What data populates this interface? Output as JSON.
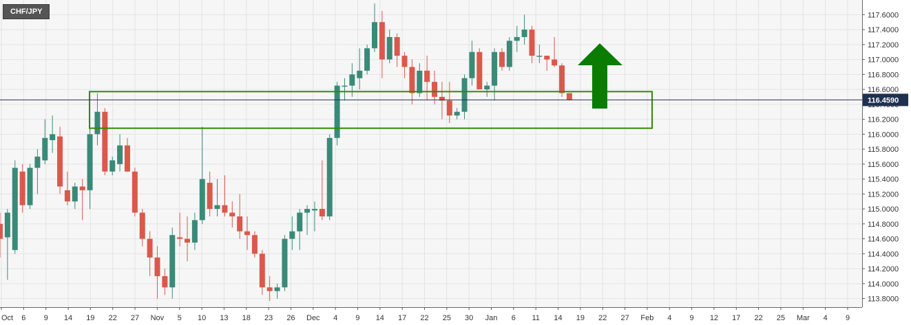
{
  "symbol": "CHF/JPY",
  "colors": {
    "bull": "#3a8a78",
    "bear": "#d9594c",
    "zone": "#2e8b00",
    "arrow": "#0a7d00",
    "price_line": "#1f3050",
    "grid": "#e3e3e3",
    "plot_bg": "#f6f6f6"
  },
  "chart_data": {
    "type": "candlestick",
    "title": "",
    "symbol": "CHF/JPY",
    "ylim": [
      113.75,
      117.75
    ],
    "yticks": [
      "113.8000",
      "114.0000",
      "114.2000",
      "114.4000",
      "114.6000",
      "114.8000",
      "115.0000",
      "115.2000",
      "115.4000",
      "115.6000",
      "115.8000",
      "116.0000",
      "116.2000",
      "116.4000",
      "116.6000",
      "116.8000",
      "117.0000",
      "117.2000",
      "117.4000",
      "117.6000"
    ],
    "xticks": [
      "Oct",
      "6",
      "9",
      "14",
      "19",
      "22",
      "27",
      "Nov",
      "5",
      "10",
      "13",
      "18",
      "23",
      "26",
      "Dec",
      "4",
      "9",
      "14",
      "17",
      "22",
      "25",
      "30",
      "Jan",
      "6",
      "11",
      "14",
      "19",
      "22",
      "27",
      "Feb",
      "4",
      "9",
      "12",
      "17",
      "22",
      "25",
      "Mar",
      "4",
      "9"
    ],
    "current_price": "116.4590",
    "annotations": {
      "support_zone": {
        "low": 116.08,
        "high": 116.57
      },
      "arrow": "up"
    },
    "candles": [
      {
        "o": 114.8,
        "h": 114.95,
        "l": 114.35,
        "c": 114.6
      },
      {
        "o": 114.62,
        "h": 115.0,
        "l": 114.05,
        "c": 114.95
      },
      {
        "o": 114.45,
        "h": 115.65,
        "l": 114.4,
        "c": 115.55
      },
      {
        "o": 115.5,
        "h": 115.6,
        "l": 114.95,
        "c": 115.05
      },
      {
        "o": 115.05,
        "h": 115.6,
        "l": 115.0,
        "c": 115.55
      },
      {
        "o": 115.55,
        "h": 115.8,
        "l": 115.2,
        "c": 115.7
      },
      {
        "o": 115.65,
        "h": 116.2,
        "l": 115.6,
        "c": 115.95
      },
      {
        "o": 115.92,
        "h": 116.25,
        "l": 115.75,
        "c": 116.0
      },
      {
        "o": 115.97,
        "h": 116.1,
        "l": 115.2,
        "c": 115.3
      },
      {
        "o": 115.25,
        "h": 115.5,
        "l": 115.05,
        "c": 115.1
      },
      {
        "o": 115.1,
        "h": 115.35,
        "l": 115.0,
        "c": 115.3
      },
      {
        "o": 115.3,
        "h": 115.4,
        "l": 114.85,
        "c": 115.25
      },
      {
        "o": 115.25,
        "h": 116.08,
        "l": 115.0,
        "c": 116.0
      },
      {
        "o": 116.0,
        "h": 116.55,
        "l": 115.85,
        "c": 116.3
      },
      {
        "o": 116.3,
        "h": 116.35,
        "l": 115.45,
        "c": 115.5
      },
      {
        "o": 115.5,
        "h": 115.7,
        "l": 115.45,
        "c": 115.65
      },
      {
        "o": 115.6,
        "h": 116.0,
        "l": 115.5,
        "c": 115.85
      },
      {
        "o": 115.85,
        "h": 115.95,
        "l": 115.5,
        "c": 115.5
      },
      {
        "o": 115.5,
        "h": 115.55,
        "l": 114.9,
        "c": 114.95
      },
      {
        "o": 114.95,
        "h": 115.0,
        "l": 114.5,
        "c": 114.6
      },
      {
        "o": 114.6,
        "h": 114.7,
        "l": 114.1,
        "c": 114.35
      },
      {
        "o": 114.35,
        "h": 114.5,
        "l": 113.8,
        "c": 114.1
      },
      {
        "o": 114.1,
        "h": 114.2,
        "l": 113.85,
        "c": 113.95
      },
      {
        "o": 113.95,
        "h": 114.75,
        "l": 113.8,
        "c": 114.65
      },
      {
        "o": 114.62,
        "h": 114.95,
        "l": 114.5,
        "c": 114.6
      },
      {
        "o": 114.6,
        "h": 114.9,
        "l": 114.3,
        "c": 114.55
      },
      {
        "o": 114.55,
        "h": 114.95,
        "l": 114.45,
        "c": 114.85
      },
      {
        "o": 114.85,
        "h": 116.1,
        "l": 114.8,
        "c": 115.4
      },
      {
        "o": 115.35,
        "h": 115.5,
        "l": 114.9,
        "c": 115.0
      },
      {
        "o": 115.0,
        "h": 115.4,
        "l": 114.9,
        "c": 115.05
      },
      {
        "o": 115.05,
        "h": 115.45,
        "l": 114.9,
        "c": 114.95
      },
      {
        "o": 114.95,
        "h": 115.1,
        "l": 114.75,
        "c": 114.9
      },
      {
        "o": 114.9,
        "h": 115.2,
        "l": 114.6,
        "c": 114.7
      },
      {
        "o": 114.7,
        "h": 114.9,
        "l": 114.45,
        "c": 114.65
      },
      {
        "o": 114.65,
        "h": 114.7,
        "l": 114.35,
        "c": 114.4
      },
      {
        "o": 114.4,
        "h": 114.45,
        "l": 113.85,
        "c": 113.95
      },
      {
        "o": 113.95,
        "h": 114.1,
        "l": 113.77,
        "c": 113.9
      },
      {
        "o": 113.9,
        "h": 114.0,
        "l": 113.8,
        "c": 113.95
      },
      {
        "o": 113.95,
        "h": 114.65,
        "l": 113.9,
        "c": 114.6
      },
      {
        "o": 114.6,
        "h": 114.9,
        "l": 114.45,
        "c": 114.7
      },
      {
        "o": 114.7,
        "h": 115.0,
        "l": 114.45,
        "c": 114.95
      },
      {
        "o": 114.95,
        "h": 115.05,
        "l": 114.65,
        "c": 115.0
      },
      {
        "o": 114.98,
        "h": 115.1,
        "l": 114.7,
        "c": 115.0
      },
      {
        "o": 115.0,
        "h": 115.65,
        "l": 114.85,
        "c": 114.9
      },
      {
        "o": 114.9,
        "h": 116.0,
        "l": 114.85,
        "c": 115.95
      },
      {
        "o": 115.95,
        "h": 116.7,
        "l": 115.85,
        "c": 116.65
      },
      {
        "o": 116.65,
        "h": 116.75,
        "l": 116.45,
        "c": 116.65
      },
      {
        "o": 116.65,
        "h": 116.95,
        "l": 116.5,
        "c": 116.8
      },
      {
        "o": 116.75,
        "h": 117.15,
        "l": 116.6,
        "c": 116.85
      },
      {
        "o": 116.85,
        "h": 117.2,
        "l": 116.8,
        "c": 117.15
      },
      {
        "o": 117.15,
        "h": 117.75,
        "l": 117.1,
        "c": 117.5
      },
      {
        "o": 117.5,
        "h": 117.65,
        "l": 116.75,
        "c": 117.0
      },
      {
        "o": 117.0,
        "h": 117.4,
        "l": 116.95,
        "c": 117.3
      },
      {
        "o": 117.3,
        "h": 117.35,
        "l": 116.9,
        "c": 117.05
      },
      {
        "o": 117.05,
        "h": 117.1,
        "l": 116.75,
        "c": 116.9
      },
      {
        "o": 116.9,
        "h": 117.0,
        "l": 116.4,
        "c": 116.55
      },
      {
        "o": 116.55,
        "h": 116.95,
        "l": 116.5,
        "c": 116.85
      },
      {
        "o": 116.85,
        "h": 117.05,
        "l": 116.45,
        "c": 116.7
      },
      {
        "o": 116.7,
        "h": 116.85,
        "l": 116.4,
        "c": 116.5
      },
      {
        "o": 116.5,
        "h": 116.7,
        "l": 116.2,
        "c": 116.45
      },
      {
        "o": 116.45,
        "h": 116.7,
        "l": 116.15,
        "c": 116.25
      },
      {
        "o": 116.25,
        "h": 116.35,
        "l": 116.2,
        "c": 116.3
      },
      {
        "o": 116.3,
        "h": 116.8,
        "l": 116.2,
        "c": 116.75
      },
      {
        "o": 116.75,
        "h": 117.25,
        "l": 116.65,
        "c": 117.1
      },
      {
        "o": 117.1,
        "h": 117.15,
        "l": 116.6,
        "c": 116.6
      },
      {
        "o": 116.6,
        "h": 116.7,
        "l": 116.5,
        "c": 116.65
      },
      {
        "o": 116.65,
        "h": 117.15,
        "l": 116.45,
        "c": 117.1
      },
      {
        "o": 117.1,
        "h": 117.15,
        "l": 116.85,
        "c": 116.9
      },
      {
        "o": 116.9,
        "h": 117.3,
        "l": 116.85,
        "c": 117.25
      },
      {
        "o": 117.25,
        "h": 117.45,
        "l": 117.1,
        "c": 117.3
      },
      {
        "o": 117.3,
        "h": 117.6,
        "l": 117.2,
        "c": 117.4
      },
      {
        "o": 117.4,
        "h": 117.45,
        "l": 116.95,
        "c": 117.05
      },
      {
        "o": 117.05,
        "h": 117.2,
        "l": 116.95,
        "c": 117.05
      },
      {
        "o": 117.05,
        "h": 117.05,
        "l": 116.85,
        "c": 117.0
      },
      {
        "o": 117.0,
        "h": 117.3,
        "l": 116.9,
        "c": 116.92
      },
      {
        "o": 116.92,
        "h": 116.95,
        "l": 116.5,
        "c": 116.55
      },
      {
        "o": 116.55,
        "h": 116.55,
        "l": 116.45,
        "c": 116.46
      }
    ]
  }
}
